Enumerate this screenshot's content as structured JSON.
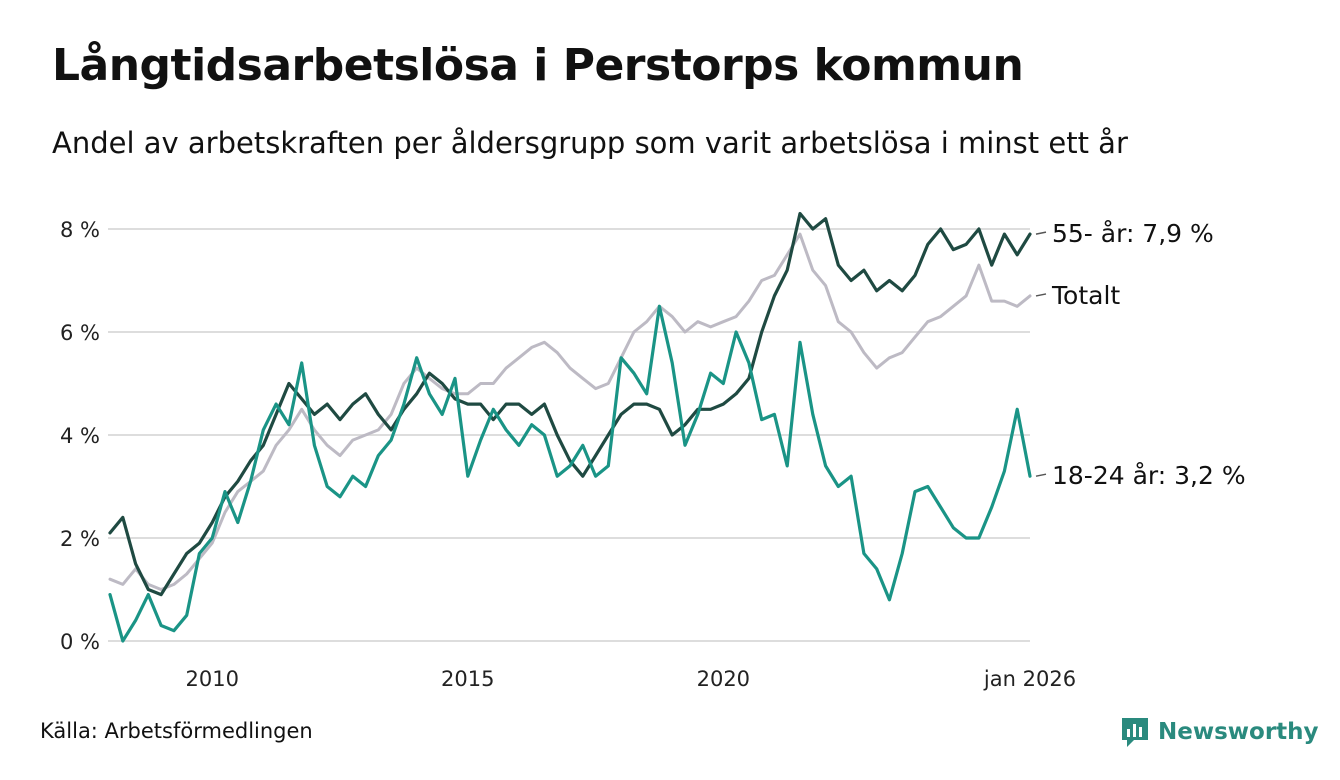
{
  "header": {
    "title": "Långtidsarbetslösa i Perstorps kommun",
    "subtitle": "Andel av arbetskraften per åldersgrupp som varit arbetslösa i minst ett år"
  },
  "footer": {
    "source": "Källa: Arbetsförmedlingen",
    "brand": "Newsworthy"
  },
  "colors": {
    "series_55": "#1f4a42",
    "series_total": "#bdbac4",
    "series_18_24": "#1a9486",
    "grid": "#dddddd",
    "brand": "#2a8a7e"
  },
  "chart_data": {
    "type": "line",
    "title": "Långtidsarbetslösa i Perstorps kommun",
    "subtitle": "Andel av arbetskraften per åldersgrupp som varit arbetslösa i minst ett år",
    "x_range": [
      2008.0,
      2026.0
    ],
    "ylim": [
      0,
      8
    ],
    "y_ticks": [
      {
        "value": 0,
        "label": "0 %"
      },
      {
        "value": 2,
        "label": "2 %"
      },
      {
        "value": 4,
        "label": "4 %"
      },
      {
        "value": 6,
        "label": "6 %"
      },
      {
        "value": 8,
        "label": "8 %"
      }
    ],
    "x_ticks": [
      {
        "value": 2010,
        "label": "2010"
      },
      {
        "value": 2015,
        "label": "2015"
      },
      {
        "value": 2020,
        "label": "2020"
      },
      {
        "value": 2026,
        "label": "jan 2026"
      }
    ],
    "grid": true,
    "series": [
      {
        "name": "Totalt",
        "end_label": "Totalt",
        "color": "#bdbac4",
        "x": [
          2008.0,
          2008.25,
          2008.5,
          2008.75,
          2009.0,
          2009.25,
          2009.5,
          2009.75,
          2010.0,
          2010.25,
          2010.5,
          2010.75,
          2011.0,
          2011.25,
          2011.5,
          2011.75,
          2012.0,
          2012.25,
          2012.5,
          2012.75,
          2013.0,
          2013.25,
          2013.5,
          2013.75,
          2014.0,
          2014.25,
          2014.5,
          2014.75,
          2015.0,
          2015.25,
          2015.5,
          2015.75,
          2016.0,
          2016.25,
          2016.5,
          2016.75,
          2017.0,
          2017.25,
          2017.5,
          2017.75,
          2018.0,
          2018.25,
          2018.5,
          2018.75,
          2019.0,
          2019.25,
          2019.5,
          2019.75,
          2020.0,
          2020.25,
          2020.5,
          2020.75,
          2021.0,
          2021.25,
          2021.5,
          2021.75,
          2022.0,
          2022.25,
          2022.5,
          2022.75,
          2023.0,
          2023.25,
          2023.5,
          2023.75,
          2024.0,
          2024.25,
          2024.5,
          2024.75,
          2025.0,
          2025.25,
          2025.5,
          2025.75,
          2026.0
        ],
        "values": [
          1.2,
          1.1,
          1.4,
          1.1,
          1.0,
          1.1,
          1.3,
          1.6,
          1.9,
          2.5,
          2.9,
          3.1,
          3.3,
          3.8,
          4.1,
          4.5,
          4.1,
          3.8,
          3.6,
          3.9,
          4.0,
          4.1,
          4.4,
          5.0,
          5.3,
          5.1,
          4.9,
          4.8,
          4.8,
          5.0,
          5.0,
          5.3,
          5.5,
          5.7,
          5.8,
          5.6,
          5.3,
          5.1,
          4.9,
          5.0,
          5.5,
          6.0,
          6.2,
          6.5,
          6.3,
          6.0,
          6.2,
          6.1,
          6.2,
          6.3,
          6.6,
          7.0,
          7.1,
          7.5,
          7.9,
          7.2,
          6.9,
          6.2,
          6.0,
          5.6,
          5.3,
          5.5,
          5.6,
          5.9,
          6.2,
          6.3,
          6.5,
          6.7,
          7.3,
          6.6,
          6.6,
          6.5,
          6.7
        ]
      },
      {
        "name": "55- år",
        "end_label": "55- år: 7,9 %",
        "color": "#1f4a42",
        "x": [
          2008.0,
          2008.25,
          2008.5,
          2008.75,
          2009.0,
          2009.25,
          2009.5,
          2009.75,
          2010.0,
          2010.25,
          2010.5,
          2010.75,
          2011.0,
          2011.25,
          2011.5,
          2011.75,
          2012.0,
          2012.25,
          2012.5,
          2012.75,
          2013.0,
          2013.25,
          2013.5,
          2013.75,
          2014.0,
          2014.25,
          2014.5,
          2014.75,
          2015.0,
          2015.25,
          2015.5,
          2015.75,
          2016.0,
          2016.25,
          2016.5,
          2016.75,
          2017.0,
          2017.25,
          2017.5,
          2017.75,
          2018.0,
          2018.25,
          2018.5,
          2018.75,
          2019.0,
          2019.25,
          2019.5,
          2019.75,
          2020.0,
          2020.25,
          2020.5,
          2020.75,
          2021.0,
          2021.25,
          2021.5,
          2021.75,
          2022.0,
          2022.25,
          2022.5,
          2022.75,
          2023.0,
          2023.25,
          2023.5,
          2023.75,
          2024.0,
          2024.25,
          2024.5,
          2024.75,
          2025.0,
          2025.25,
          2025.5,
          2025.75,
          2026.0
        ],
        "values": [
          2.1,
          2.4,
          1.5,
          1.0,
          0.9,
          1.3,
          1.7,
          1.9,
          2.3,
          2.8,
          3.1,
          3.5,
          3.8,
          4.4,
          5.0,
          4.7,
          4.4,
          4.6,
          4.3,
          4.6,
          4.8,
          4.4,
          4.1,
          4.5,
          4.8,
          5.2,
          5.0,
          4.7,
          4.6,
          4.6,
          4.3,
          4.6,
          4.6,
          4.4,
          4.6,
          4.0,
          3.5,
          3.2,
          3.6,
          4.0,
          4.4,
          4.6,
          4.6,
          4.5,
          4.0,
          4.2,
          4.5,
          4.5,
          4.6,
          4.8,
          5.1,
          6.0,
          6.7,
          7.2,
          8.3,
          8.0,
          8.2,
          7.3,
          7.0,
          7.2,
          6.8,
          7.0,
          6.8,
          7.1,
          7.7,
          8.0,
          7.6,
          7.7,
          8.0,
          7.3,
          7.9,
          7.5,
          7.9
        ]
      },
      {
        "name": "18-24 år",
        "end_label": "18-24 år: 3,2 %",
        "color": "#1a9486",
        "x": [
          2008.0,
          2008.25,
          2008.5,
          2008.75,
          2009.0,
          2009.25,
          2009.5,
          2009.75,
          2010.0,
          2010.25,
          2010.5,
          2010.75,
          2011.0,
          2011.25,
          2011.5,
          2011.75,
          2012.0,
          2012.25,
          2012.5,
          2012.75,
          2013.0,
          2013.25,
          2013.5,
          2013.75,
          2014.0,
          2014.25,
          2014.5,
          2014.75,
          2015.0,
          2015.25,
          2015.5,
          2015.75,
          2016.0,
          2016.25,
          2016.5,
          2016.75,
          2017.0,
          2017.25,
          2017.5,
          2017.75,
          2018.0,
          2018.25,
          2018.5,
          2018.75,
          2019.0,
          2019.25,
          2019.5,
          2019.75,
          2020.0,
          2020.25,
          2020.5,
          2020.75,
          2021.0,
          2021.25,
          2021.5,
          2021.75,
          2022.0,
          2022.25,
          2022.5,
          2022.75,
          2023.0,
          2023.25,
          2023.5,
          2023.75,
          2024.0,
          2024.25,
          2024.5,
          2024.75,
          2025.0,
          2025.25,
          2025.5,
          2025.75,
          2026.0
        ],
        "values": [
          0.9,
          0.0,
          0.4,
          0.9,
          0.3,
          0.2,
          0.5,
          1.7,
          2.0,
          2.9,
          2.3,
          3.1,
          4.1,
          4.6,
          4.2,
          5.4,
          3.8,
          3.0,
          2.8,
          3.2,
          3.0,
          3.6,
          3.9,
          4.6,
          5.5,
          4.8,
          4.4,
          5.1,
          3.2,
          3.9,
          4.5,
          4.1,
          3.8,
          4.2,
          4.0,
          3.2,
          3.4,
          3.8,
          3.2,
          3.4,
          5.5,
          5.2,
          4.8,
          6.5,
          5.4,
          3.8,
          4.4,
          5.2,
          5.0,
          6.0,
          5.4,
          4.3,
          4.4,
          3.4,
          5.8,
          4.4,
          3.4,
          3.0,
          3.2,
          1.7,
          1.4,
          0.8,
          1.7,
          2.9,
          3.0,
          2.6,
          2.2,
          2.0,
          2.0,
          2.6,
          3.3,
          4.5,
          3.2
        ]
      }
    ]
  }
}
